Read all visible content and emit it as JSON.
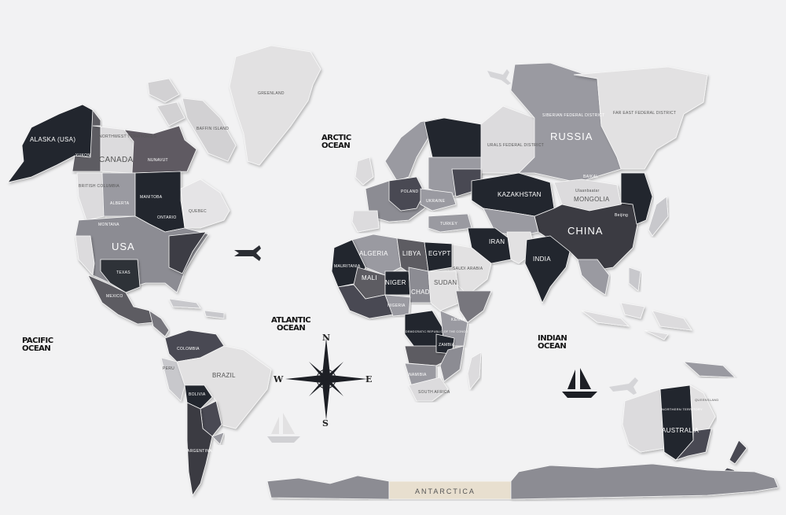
{
  "map": {
    "oceans": {
      "arctic": [
        "ARCTIC",
        "OCEAN"
      ],
      "atlantic": [
        "ATLANTIC",
        "OCEAN"
      ],
      "pacific": [
        "PACIFIC",
        "OCEAN"
      ],
      "indian": [
        "INDIAN",
        "OCEAN"
      ]
    },
    "compass": {
      "n": "N",
      "s": "S",
      "e": "E",
      "w": "W"
    },
    "labels": {
      "greenland": "GREENLAND",
      "alaska": "ALASKA (USA)",
      "yukon": "YUKON",
      "canada": "CANADA",
      "nunavut": "NUNAVUT",
      "nwt": "NORTHWEST TERRITORIES",
      "british_columbia": "BRITISH COLUMBIA",
      "alberta": "ALBERTA",
      "manitoba": "MANITOBA",
      "ontario": "ONTARIO",
      "quebec": "QUEBEC",
      "baffin": "BAFFIN ISLAND",
      "montana": "MONTANA",
      "usa": "USA",
      "texas": "TEXAS",
      "mexico": "MEXICO",
      "colombia": "COLOMBIA",
      "peru": "PERU",
      "brazil": "BRAZIL",
      "bolivia": "BOLIVIA",
      "argentina": "ARGENTINA",
      "russia": "RUSSIA",
      "siberian": "SIBERIAN FEDERAL DISTRICT",
      "far_east": "FAR EAST FEDERAL DISTRICT",
      "urals": "URALS FEDERAL DISTRICT",
      "kazakhstan": "KAZAKHSTAN",
      "mongolia": "MONGOLIA",
      "ulaanbaatar": "Ulaanbaatar",
      "baikal": "BAIKAL",
      "beijing": "Beijing",
      "china": "CHINA",
      "india": "INDIA",
      "iran": "IRAN",
      "turkey": "TURKEY",
      "ukraine": "UKRAINE",
      "poland": "POLAND",
      "saudi": "SAUDI ARABIA",
      "algeria": "ALGERIA",
      "libya": "LIBYA",
      "egypt": "EGYPT",
      "mali": "MALI",
      "niger": "NIGER",
      "chad": "CHAD",
      "sudan": "SUDAN",
      "nigeria": "NIGERIA",
      "mauritania": "MAURITANIA",
      "drc": "DEMOCRATIC REPUBLIC OF THE CONGO",
      "kenya": "KENYA",
      "zambia": "ZAMBIA",
      "namibia": "NAMIBIA",
      "south_africa": "SOUTH AFRICA",
      "australia": "AUSTRALIA",
      "queensland": "QUEENSLAND",
      "northern_territory": "NORTHERN TERRITORY",
      "antarctica": "ANTARCTICA"
    },
    "colors": {
      "background": "#f2f2f3",
      "black": "#23262d",
      "dark": "#4a4a52",
      "mid": "#77767d",
      "grey": "#9a9aa1",
      "light": "#c8c8cc",
      "pale": "#e2e1e2",
      "water": "#2aa6e0"
    }
  }
}
